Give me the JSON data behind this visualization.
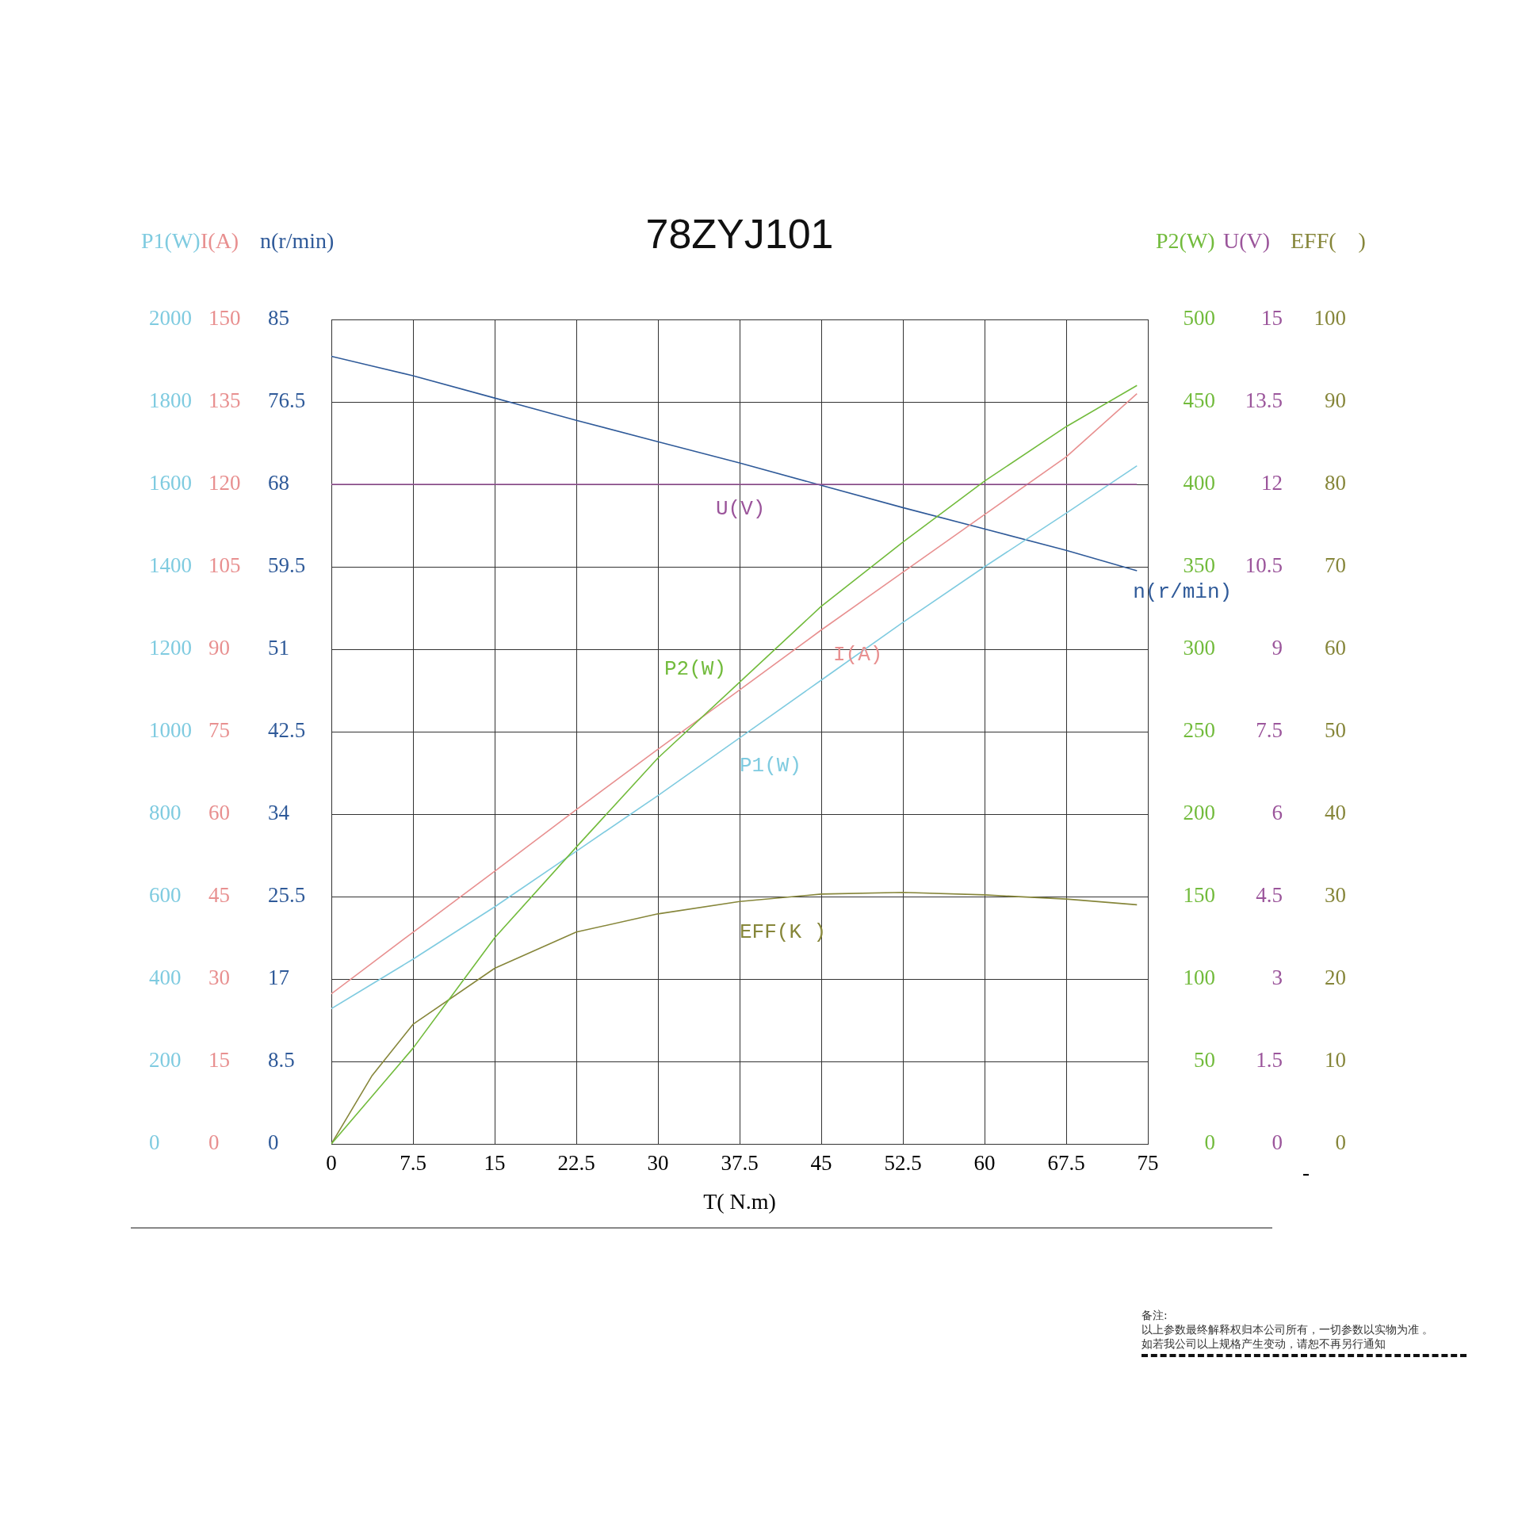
{
  "chart_data": [
    {
      "type": "line",
      "title": "78ZYJ101",
      "xlabel": "T( N.m)",
      "ylabel": "n(r/min)",
      "y2label": "I(A)",
      "y3label": "P1(W)",
      "x": [
        0,
        3.75,
        7.5,
        15,
        22.5,
        30,
        37.5,
        45,
        52.5,
        60,
        67.5,
        74
      ],
      "xlim": [
        0,
        75
      ],
      "xticks": [
        0,
        7.5,
        15,
        22.5,
        30,
        37.5,
        45,
        52.5,
        60,
        67.5,
        75
      ],
      "ylim": [
        0,
        85
      ],
      "yticks": [
        0,
        8.5,
        17,
        25.5,
        34,
        42.5,
        51,
        59.5,
        68,
        76.5,
        85
      ],
      "y2lim": [
        0,
        150
      ],
      "y2ticks": [
        0,
        15,
        30,
        45,
        60,
        75,
        90,
        105,
        120,
        135,
        150
      ],
      "y3lim": [
        0,
        2000
      ],
      "y3ticks": [
        0,
        200,
        400,
        600,
        800,
        1000,
        1200,
        1400,
        1600,
        1800,
        2000
      ],
      "grid": true,
      "legend": false,
      "marker": "none",
      "line_style": "solid",
      "series": [
        {
          "name": "P1(W)",
          "color": "#7fcbe0",
          "axis": "y3",
          "values": [
            328,
            388,
            448,
            575,
            710,
            845,
            985,
            1125,
            1265,
            1400,
            1530,
            1645
          ]
        },
        {
          "name": "I(A)",
          "color": "#e89090",
          "axis": "y2",
          "values": [
            27.3,
            32.9,
            38.5,
            49.6,
            60.8,
            71.8,
            82.6,
            93.5,
            104,
            114.5,
            125,
            136.5
          ]
        },
        {
          "name": "n(r/min)",
          "color": "#2f5a99",
          "values": [
            81.2,
            80.2,
            79.2,
            76.9,
            74.6,
            72.4,
            70.2,
            67.9,
            65.6,
            63.4,
            61.2,
            59.1
          ]
        }
      ],
      "annotations": [
        "备注:",
        "以上参数最终解释权归本公司所有，一切参数以实物为准 。",
        "如若我公司以上规格产生变动，请恕不再另行通知"
      ]
    },
    {
      "type": "line",
      "ylabel": "P2(W)",
      "y2label": "U(V)",
      "y3label": "EFF(    )",
      "x": [
        0,
        3.75,
        7.5,
        15,
        22.5,
        30,
        37.5,
        45,
        52.5,
        60,
        67.5,
        74
      ],
      "xlim": [
        0,
        75
      ],
      "tick_labels": "y",
      "ylim": [
        0,
        500
      ],
      "yticks": [
        0,
        50,
        100,
        150,
        200,
        250,
        300,
        350,
        400,
        450,
        500
      ],
      "y2lim": [
        0,
        15
      ],
      "y2ticks": [
        0,
        1.5,
        3,
        4.5,
        6,
        7.5,
        9,
        10.5,
        12,
        13.5,
        15
      ],
      "y3lim": [
        0,
        100
      ],
      "y3ticks": [
        0,
        10,
        20,
        30,
        40,
        50,
        60,
        70,
        80,
        90,
        100
      ],
      "legend": false,
      "marker": "none",
      "line_style": "solid",
      "series": [
        {
          "name": "P2(W)",
          "color": "#72bb3c",
          "values": [
            0,
            29,
            58,
            125,
            180,
            234,
            280,
            326,
            365,
            402,
            435,
            460
          ]
        },
        {
          "name": "U(V)",
          "color": "#9b559b",
          "axis": "y2",
          "values": [
            12,
            12,
            12,
            12,
            12,
            12,
            12,
            12,
            12,
            12,
            12,
            12
          ]
        },
        {
          "name": "EFF(K )",
          "color": "#86863a",
          "axis": "y3",
          "values": [
            0,
            8.3,
            14.5,
            21.3,
            25.7,
            27.9,
            29.4,
            30.3,
            30.5,
            30.2,
            29.7,
            29.0
          ]
        }
      ],
      "annotations": [
        "-"
      ]
    }
  ]
}
